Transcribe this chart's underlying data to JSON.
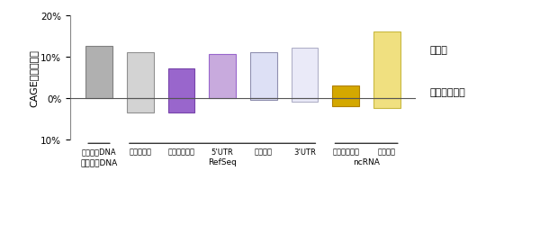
{
  "categories": [
    "遠伝子間DNA",
    "イントロン",
    "プロモーター",
    "5’UTR",
    "転写領域",
    "3’UTR",
    "プロモーター",
    "エクソン"
  ],
  "sense": [
    12.5,
    11.0,
    7.0,
    10.5,
    11.0,
    12.0,
    3.0,
    16.0
  ],
  "antisense": [
    0.0,
    -3.5,
    -3.5,
    0.0,
    -0.5,
    -1.0,
    -2.0,
    -2.5
  ],
  "bar_fill_colors": [
    "#b0b0b0",
    "#d3d3d3",
    "#9966cc",
    "#c8aadd",
    "#dde0f5",
    "#eaeaf8",
    "#d4a800",
    "#f0e080"
  ],
  "bar_edge_colors": [
    "#808080",
    "#909090",
    "#7744aa",
    "#9966cc",
    "#9090b0",
    "#b0b0c8",
    "#b08000",
    "#c8b840"
  ],
  "background_color": "#ffffff",
  "ylim": [
    -10,
    20
  ],
  "yticks": [
    -10,
    0,
    10,
    20
  ],
  "ytick_labels": [
    "10%",
    "0%",
    "10%",
    "20%"
  ],
  "ylabel": "CAGEタグの割合",
  "sense_label": "センス",
  "antisense_label": "アンチセンス",
  "bar_width": 0.65,
  "cat_labels": [
    "遠伝子間DNA",
    "イントロン",
    "プロモーター",
    "5’UTR",
    "転写領域",
    "3’UTR",
    "プロモーター",
    "エクソン"
  ],
  "group1_label": "遠伝子間DNA",
  "group2_label": "RefSeq",
  "group3_label": "ncRNA"
}
